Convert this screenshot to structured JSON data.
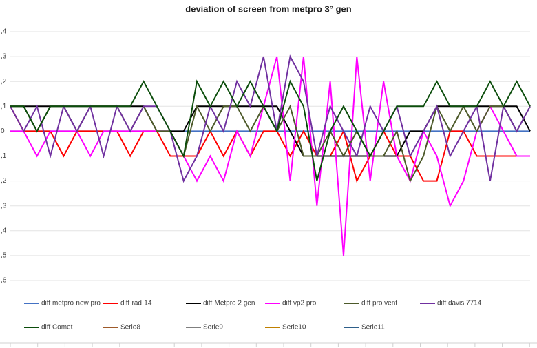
{
  "chart_data": {
    "type": "line",
    "title": "deviation of screen from metpro 3° gen",
    "categories": [
      null,
      null,
      null,
      null,
      null,
      null,
      null,
      null,
      null,
      null,
      null,
      null,
      null,
      null,
      null,
      null,
      null,
      null,
      null,
      null,
      null,
      null,
      null,
      null,
      null,
      null,
      null,
      null,
      null,
      null,
      null,
      null,
      null,
      null,
      null,
      null,
      null,
      null,
      null,
      null
    ],
    "ylim": [
      -0.6,
      0.4
    ],
    "yticks": [
      {
        "value": 0.4,
        "label": ",4"
      },
      {
        "value": 0.3,
        "label": ",3"
      },
      {
        "value": 0.2,
        "label": ",2"
      },
      {
        "value": 0.1,
        "label": ",1"
      },
      0,
      {
        "value": -0.1,
        "label": ",1"
      },
      {
        "value": -0.2,
        "label": ",2"
      },
      {
        "value": -0.3,
        "label": ",3"
      },
      {
        "value": -0.4,
        "label": ",4"
      },
      {
        "value": -0.5,
        "label": ",5"
      },
      {
        "value": -0.6,
        "label": ",6"
      }
    ],
    "grid": true,
    "legend": "bottom",
    "series": [
      {
        "name": "diff metpro-new pro",
        "color": "#4472c4",
        "values": [
          0,
          0,
          0,
          0,
          0,
          0,
          0,
          0,
          0,
          0,
          0,
          0,
          0,
          0,
          0,
          0,
          0,
          0,
          0,
          0,
          0,
          0,
          0,
          0,
          0,
          0,
          0,
          0,
          0,
          0,
          0,
          0,
          0,
          0,
          0,
          0,
          0,
          0,
          0,
          0
        ]
      },
      {
        "name": "diff-rad-14",
        "color": "#ff0000",
        "values": [
          0.1,
          0,
          0,
          0,
          -0.1,
          0,
          0,
          0,
          0,
          -0.1,
          0,
          0,
          -0.1,
          -0.1,
          -0.1,
          0,
          -0.1,
          0,
          -0.1,
          0,
          0,
          -0.1,
          0,
          -0.1,
          -0.1,
          0,
          -0.2,
          -0.1,
          0,
          -0.1,
          -0.1,
          -0.2,
          -0.2,
          0,
          0,
          -0.1,
          -0.1,
          -0.1,
          -0.1,
          -0.1
        ]
      },
      {
        "name": "diff-Metpro 2 gen",
        "color": "#000000",
        "values": [
          0.1,
          0.1,
          0.1,
          0.1,
          0.1,
          0.1,
          0.1,
          0.1,
          0.1,
          0.1,
          0.1,
          0,
          0,
          0,
          0.1,
          0.1,
          0.1,
          0.1,
          0.1,
          0.1,
          0.1,
          0,
          -0.1,
          -0.1,
          -0.1,
          -0.1,
          -0.1,
          -0.1,
          -0.1,
          -0.1,
          0,
          0,
          0.1,
          0.1,
          0.1,
          0.1,
          0.1,
          0.1,
          0.1,
          0
        ]
      },
      {
        "name": "diff vp2 pro",
        "color": "#ff00ff",
        "values": [
          0,
          0,
          -0.1,
          0,
          0,
          0,
          -0.1,
          0,
          0,
          0,
          0,
          0,
          0,
          -0.1,
          -0.2,
          -0.1,
          -0.2,
          0,
          -0.1,
          0.1,
          0.3,
          -0.2,
          0.3,
          -0.3,
          0.2,
          -0.5,
          0.3,
          -0.2,
          0.2,
          -0.1,
          -0.2,
          0,
          -0.1,
          -0.3,
          -0.2,
          0,
          0.1,
          0,
          -0.1,
          -0.1
        ]
      },
      {
        "name": "diff pro vent",
        "color": "#4d5a2a",
        "values": [
          0.1,
          0.1,
          0,
          0.1,
          0.1,
          0,
          0.1,
          0.1,
          0.1,
          0,
          0.1,
          0,
          0,
          -0.1,
          0.1,
          0,
          0.1,
          0.1,
          0,
          0.1,
          0,
          0.1,
          -0.1,
          -0.1,
          0,
          -0.1,
          0,
          -0.1,
          -0.1,
          0,
          -0.2,
          -0.1,
          0.1,
          0,
          0.1,
          0,
          0.1,
          0.1,
          0,
          0.1
        ]
      },
      {
        "name": "diff davis 7714",
        "color": "#7030a0",
        "values": [
          0.1,
          0,
          0.1,
          -0.1,
          0.1,
          0,
          0.1,
          -0.1,
          0.1,
          0,
          0.1,
          0.1,
          0,
          -0.2,
          -0.1,
          0.1,
          0,
          0.2,
          0.1,
          0.3,
          0,
          0.3,
          0.2,
          -0.1,
          0.1,
          0,
          -0.1,
          0.1,
          0,
          0.1,
          -0.1,
          0,
          0.1,
          -0.1,
          0,
          0.1,
          -0.2,
          0.1,
          0,
          0.1
        ]
      },
      {
        "name": "diff Comet",
        "color": "#0b4d0b",
        "values": [
          0.1,
          0.1,
          0,
          0.1,
          0.1,
          0.1,
          0.1,
          0.1,
          0.1,
          0.1,
          0.2,
          0.1,
          0,
          -0.1,
          0.2,
          0.1,
          0.2,
          0.1,
          0.2,
          0.1,
          0,
          0.2,
          0.1,
          -0.2,
          0,
          0.1,
          0,
          -0.1,
          0,
          0.1,
          0.1,
          0.1,
          0.2,
          0.1,
          0.1,
          0.1,
          0.2,
          0.1,
          0.2,
          0.1
        ]
      },
      {
        "name": "Serie8",
        "color": "#9e5a2a",
        "values": [
          null,
          null,
          null,
          null,
          null,
          null,
          null,
          null,
          null,
          null,
          null,
          null,
          null,
          null,
          null,
          null,
          null,
          null,
          null,
          null,
          null,
          null,
          null,
          null,
          null,
          null,
          null,
          null,
          null,
          null,
          null,
          null,
          null,
          null,
          null,
          null,
          null,
          null,
          null,
          null
        ]
      },
      {
        "name": "Serie9",
        "color": "#7f7f7f",
        "values": [
          null,
          null,
          null,
          null,
          null,
          null,
          null,
          null,
          null,
          null,
          null,
          null,
          null,
          null,
          null,
          null,
          null,
          null,
          null,
          null,
          null,
          null,
          null,
          null,
          null,
          null,
          null,
          null,
          null,
          null,
          null,
          null,
          null,
          null,
          null,
          null,
          null,
          null,
          null,
          null
        ]
      },
      {
        "name": "Serie10",
        "color": "#c08000",
        "values": [
          null,
          null,
          null,
          null,
          null,
          null,
          null,
          null,
          null,
          null,
          null,
          null,
          null,
          null,
          null,
          null,
          null,
          null,
          null,
          null,
          null,
          null,
          null,
          null,
          null,
          null,
          null,
          null,
          null,
          null,
          null,
          null,
          null,
          null,
          null,
          null,
          null,
          null,
          null,
          null
        ]
      },
      {
        "name": "Serie11",
        "color": "#2e5f8a",
        "values": [
          null,
          null,
          null,
          null,
          null,
          null,
          null,
          null,
          null,
          null,
          null,
          null,
          null,
          null,
          null,
          null,
          null,
          null,
          null,
          null,
          null,
          null,
          null,
          null,
          null,
          null,
          null,
          null,
          null,
          null,
          null,
          null,
          null,
          null,
          null,
          null,
          null,
          null,
          null,
          null
        ]
      }
    ]
  }
}
